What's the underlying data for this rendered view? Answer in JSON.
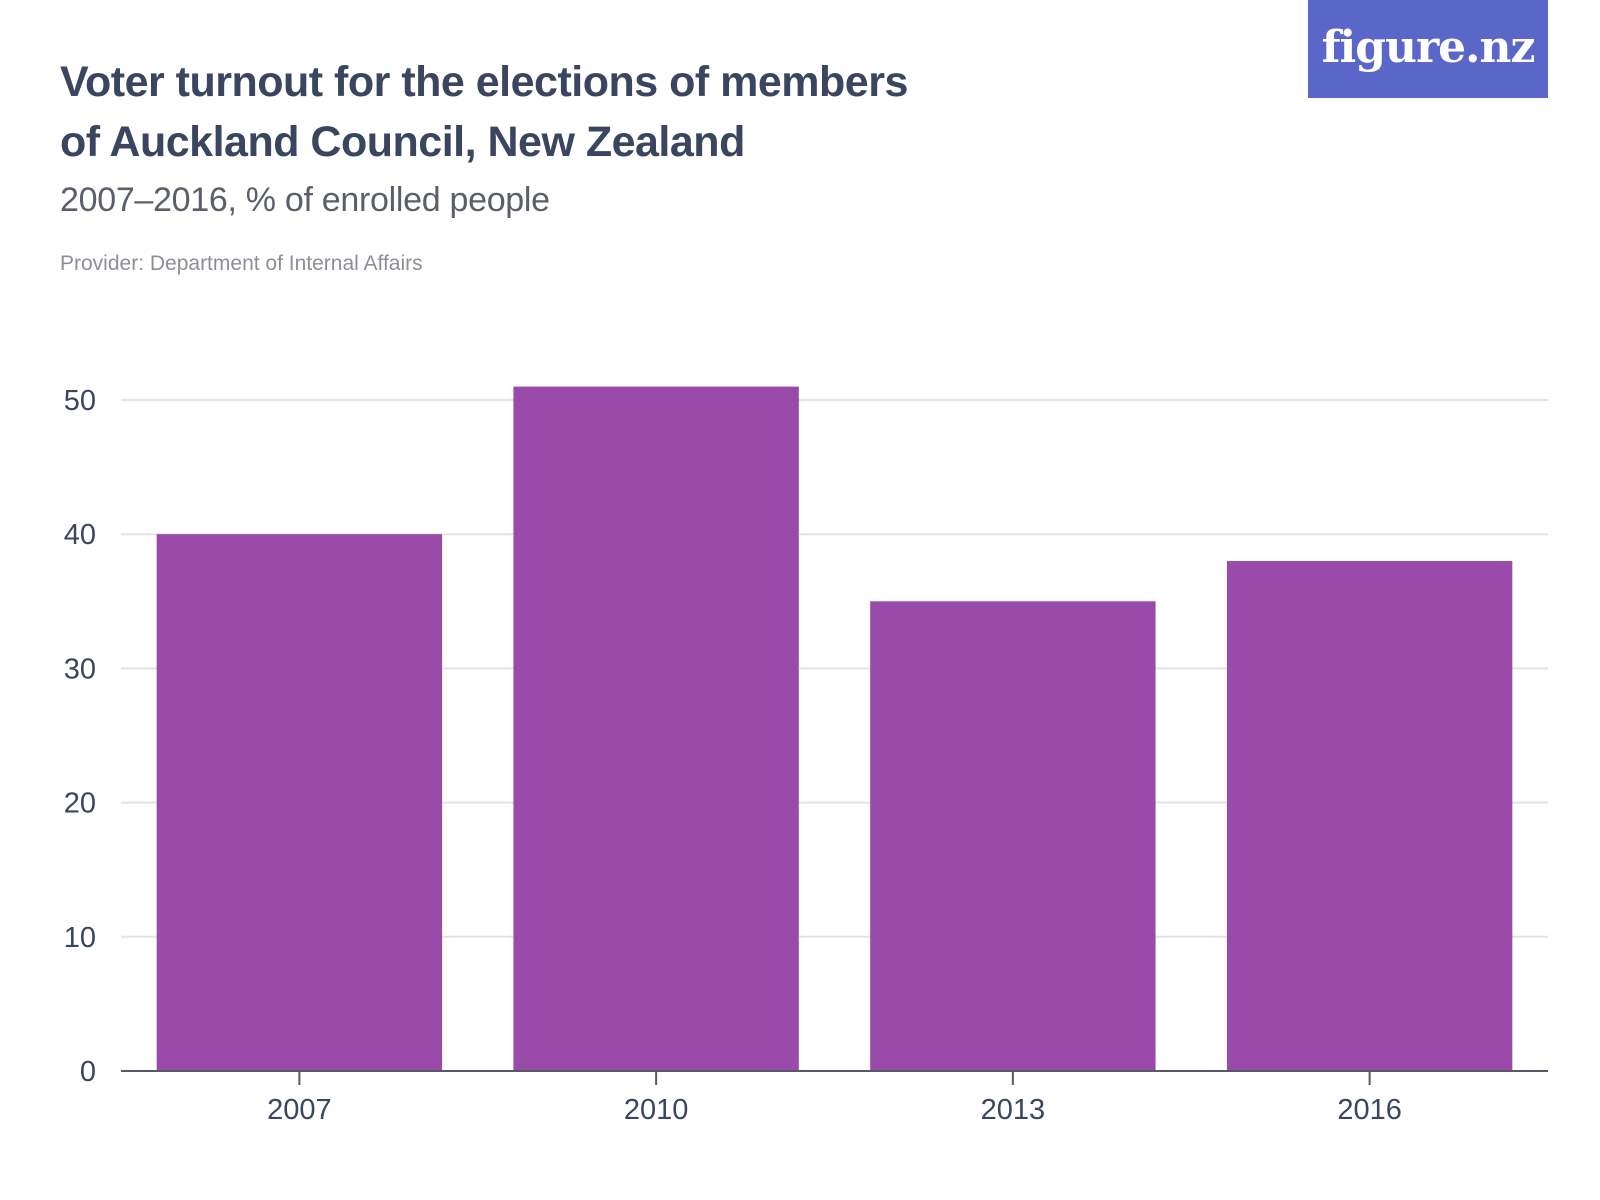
{
  "header": {
    "title_line1": "Voter turnout for the elections of members",
    "title_line2": "of Auckland Council, New Zealand",
    "subtitle": "2007–2016, % of enrolled people",
    "provider": "Provider: Department of Internal Affairs",
    "logo_text": "figure.nz"
  },
  "colors": {
    "bar": "#9a4aa8",
    "grid": "#e3e3e6",
    "axis": "#555a66",
    "text": "#3a4660",
    "logo_bg": "#5b66c9"
  },
  "chart_data": {
    "type": "bar",
    "title": "Voter turnout for the elections of members of Auckland Council, New Zealand",
    "subtitle": "2007–2016, % of enrolled people",
    "xlabel": "",
    "ylabel": "",
    "categories": [
      "2007",
      "2010",
      "2013",
      "2016"
    ],
    "values": [
      40,
      51,
      35,
      38
    ],
    "ylim": [
      0,
      50
    ],
    "yticks": [
      0,
      10,
      20,
      30,
      40,
      50
    ],
    "grid": true,
    "legend": "none"
  }
}
